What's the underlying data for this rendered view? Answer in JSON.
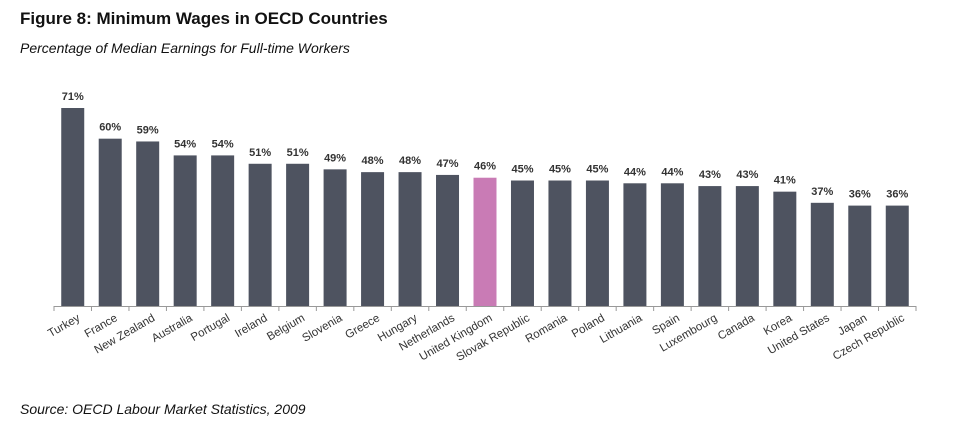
{
  "chart_data": {
    "type": "bar",
    "title": "Figure 8: Minimum Wages in OECD Countries",
    "subtitle": "Percentage of Median Earnings for Full-time Workers",
    "source": "Source: OECD Labour Market Statistics, 2009",
    "xlabel": "",
    "ylabel": "",
    "ylim": [
      0,
      71
    ],
    "grid": false,
    "categories": [
      "Turkey",
      "France",
      "New Zealand",
      "Australia",
      "Portugal",
      "Ireland",
      "Belgium",
      "Slovenia",
      "Greece",
      "Hungary",
      "Netherlands",
      "United Kingdom",
      "Slovak Republic",
      "Romania",
      "Poland",
      "Lithuania",
      "Spain",
      "Luxembourg",
      "Canada",
      "Korea",
      "United States",
      "Japan",
      "Czech Republic"
    ],
    "values": [
      71,
      60,
      59,
      54,
      54,
      51,
      51,
      49,
      48,
      48,
      47,
      46,
      45,
      45,
      45,
      44,
      44,
      43,
      43,
      41,
      37,
      36,
      36
    ],
    "value_labels": [
      "71%",
      "60%",
      "59%",
      "54%",
      "54%",
      "51%",
      "51%",
      "49%",
      "48%",
      "48%",
      "47%",
      "46%",
      "45%",
      "45%",
      "45%",
      "44%",
      "44%",
      "43%",
      "43%",
      "41%",
      "37%",
      "36%",
      "36%"
    ],
    "highlight": "United Kingdom",
    "colors": {
      "bar": "#4e5360",
      "highlight": "#c97bb5",
      "axis": "#999999"
    }
  }
}
